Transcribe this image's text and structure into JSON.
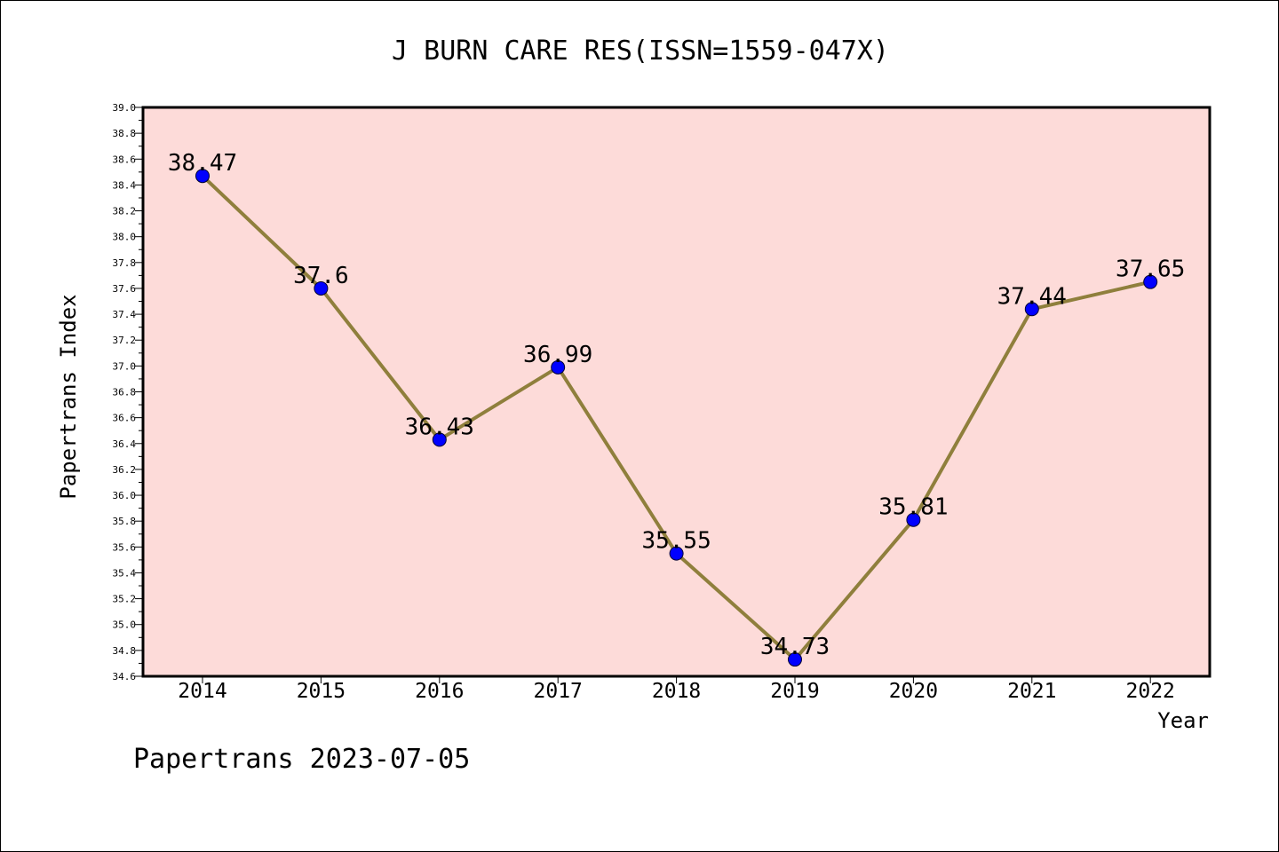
{
  "chart_data": {
    "type": "line",
    "title": "J BURN CARE RES(ISSN=1559-047X)",
    "xlabel": "Year",
    "ylabel": "Papertrans Index",
    "categories": [
      "2014",
      "2015",
      "2016",
      "2017",
      "2018",
      "2019",
      "2020",
      "2021",
      "2022"
    ],
    "series": [
      {
        "values": [
          38.47,
          37.6,
          36.43,
          36.99,
          35.55,
          34.73,
          35.81,
          37.44,
          37.65
        ],
        "labels": [
          "38.47",
          "37.6",
          "36.43",
          "36.99",
          "35.55",
          "34.73",
          "35.81",
          "37.44",
          "37.65"
        ]
      }
    ],
    "ylim": [
      34.6,
      39.0
    ],
    "yticks": [
      "34.6",
      "34.8",
      "35.0",
      "35.2",
      "35.4",
      "35.6",
      "35.8",
      "36.0",
      "36.2",
      "36.4",
      "36.6",
      "36.8",
      "37.0",
      "37.2",
      "37.4",
      "37.6",
      "37.8",
      "38.0",
      "38.2",
      "38.4",
      "38.6",
      "38.8",
      "39.0"
    ],
    "grid": false,
    "legend": "none",
    "footer": "Papertrans 2023-07-05",
    "colors": {
      "plot_background": "#fddbd9",
      "line": "#8f7f3c",
      "marker": "#0000ff",
      "axis": "#000000"
    }
  }
}
